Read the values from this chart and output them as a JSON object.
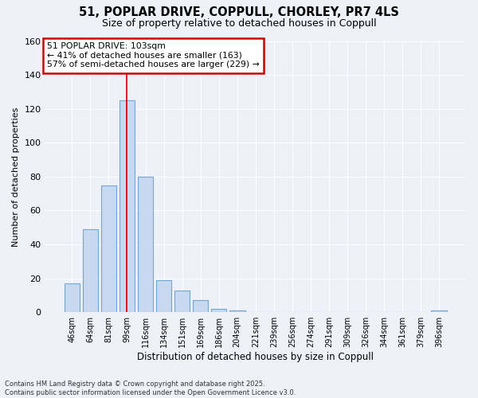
{
  "title_line1": "51, POPLAR DRIVE, COPPULL, CHORLEY, PR7 4LS",
  "title_line2": "Size of property relative to detached houses in Coppull",
  "xlabel": "Distribution of detached houses by size in Coppull",
  "ylabel": "Number of detached properties",
  "annotation_line1": "51 POPLAR DRIVE: 103sqm",
  "annotation_line2": "← 41% of detached houses are smaller (163)",
  "annotation_line3": "57% of semi-detached houses are larger (229) →",
  "categories": [
    "46sqm",
    "64sqm",
    "81sqm",
    "99sqm",
    "116sqm",
    "134sqm",
    "151sqm",
    "169sqm",
    "186sqm",
    "204sqm",
    "221sqm",
    "239sqm",
    "256sqm",
    "274sqm",
    "291sqm",
    "309sqm",
    "326sqm",
    "344sqm",
    "361sqm",
    "379sqm",
    "396sqm"
  ],
  "values": [
    17,
    49,
    75,
    125,
    80,
    19,
    13,
    7,
    2,
    1,
    0,
    0,
    0,
    0,
    0,
    0,
    0,
    0,
    0,
    0,
    1
  ],
  "bar_color": "#c8d8ee",
  "bar_edge_color": "#6ea8d8",
  "highlight_color": "#cc0000",
  "box_color": "#cc0000",
  "background_color": "#eef2f8",
  "grid_color": "#ffffff",
  "ylim": [
    0,
    160
  ],
  "yticks": [
    0,
    20,
    40,
    60,
    80,
    100,
    120,
    140,
    160
  ],
  "property_bin_index": 3,
  "footer_line1": "Contains HM Land Registry data © Crown copyright and database right 2025.",
  "footer_line2": "Contains public sector information licensed under the Open Government Licence v3.0."
}
